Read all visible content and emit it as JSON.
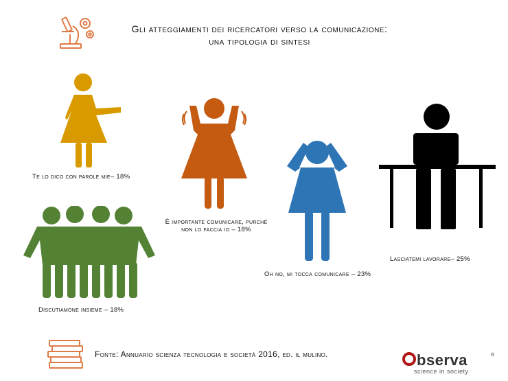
{
  "title": {
    "line1": "Gli atteggiamenti dei ricercatori verso la comunicazione:",
    "line2": "una tipologia di sintesi"
  },
  "figures": [
    {
      "label": "Te lo dico con parole mie– 18%",
      "color": "#d99a00"
    },
    {
      "label_line1": "È importante comunicare, purché",
      "label_line2": "non lo faccia io – 18%",
      "color": "#c55a11"
    },
    {
      "label": "Oh no, mi tocca comunicare – 23%",
      "color": "#2e75b6"
    },
    {
      "label": "Lasciatemi lavorare– 25%",
      "color": "#000000"
    },
    {
      "label": "Discutiamone insieme – 18%",
      "color": "#548235"
    }
  ],
  "source": "Fonte: Annuario scienza tecnologia e società 2016, ed. il mulino.",
  "logo": {
    "name": "bserva",
    "tagline": "science in society",
    "reg": "®",
    "accent": "#b01818"
  },
  "icons": [
    "microscope-gear-icon",
    "books-icon"
  ]
}
